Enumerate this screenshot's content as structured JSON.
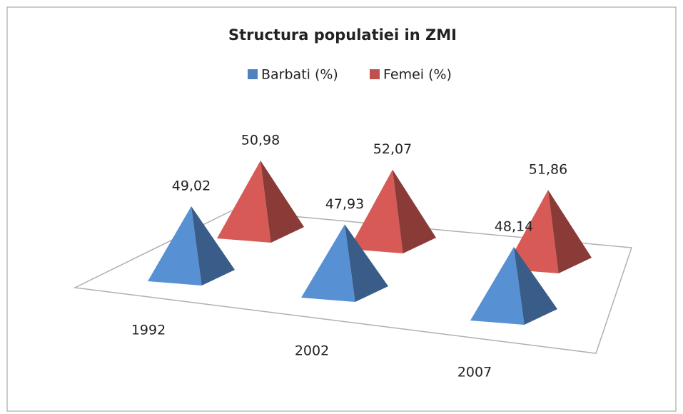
{
  "chart_data": {
    "type": "pyramid",
    "title": "Structura populatiei in ZMI",
    "categories": [
      "1992",
      "2002",
      "2007"
    ],
    "series": [
      {
        "name": "Barbati (%)",
        "color": "#4f81bd",
        "values": [
          49.02,
          47.93,
          48.14
        ],
        "value_labels": [
          "49,02",
          "47,93",
          "48,14"
        ]
      },
      {
        "name": "Femei (%)",
        "color": "#c0504d",
        "values": [
          50.98,
          52.07,
          51.86
        ],
        "value_labels": [
          "50,98",
          "52,07",
          "51,86"
        ]
      }
    ]
  }
}
